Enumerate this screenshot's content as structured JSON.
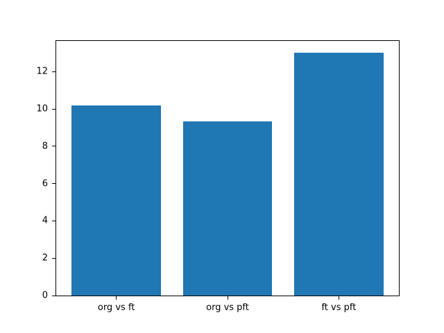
{
  "chart_data": {
    "type": "bar",
    "categories": [
      "org vs ft",
      "org vs pft",
      "ft vs pft"
    ],
    "values": [
      10.2,
      9.35,
      13.0
    ],
    "title": "",
    "xlabel": "",
    "ylabel": "",
    "ylim": [
      0,
      13.65
    ],
    "yticks": [
      0,
      2,
      4,
      6,
      8,
      10,
      12
    ],
    "bar_color": "#1f77b4",
    "bar_width_fraction": 0.8,
    "grid": false,
    "legend": false,
    "background_color": "#ffffff",
    "axis_color": "#000000"
  }
}
